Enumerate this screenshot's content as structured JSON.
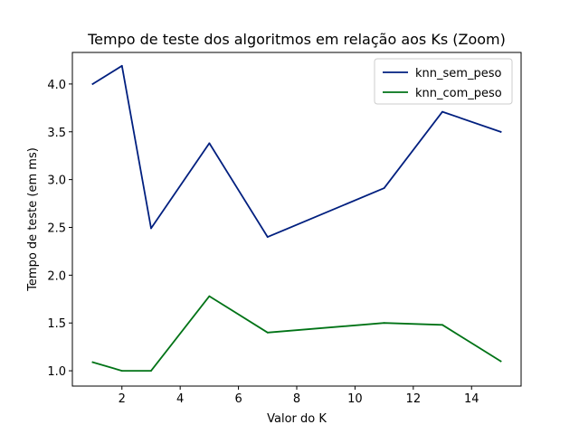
{
  "chart_data": {
    "type": "line",
    "title": "Tempo de teste dos algoritmos em relação aos Ks (Zoom)",
    "xlabel": "Valor do K",
    "ylabel": "Tempo de teste (em ms)",
    "x": [
      1,
      2,
      3,
      5,
      7,
      11,
      13,
      15
    ],
    "xlim": [
      0.3,
      15.7
    ],
    "ylim": [
      0.84,
      4.33
    ],
    "xticks": [
      2,
      4,
      6,
      8,
      10,
      12,
      14
    ],
    "yticks": [
      1.0,
      1.5,
      2.0,
      2.5,
      3.0,
      3.5,
      4.0
    ],
    "grid": false,
    "legend_position": "top-right",
    "series": [
      {
        "name": "knn_sem_peso",
        "color": "#001f7f",
        "values": [
          4.0,
          4.19,
          2.49,
          3.38,
          2.4,
          2.91,
          3.71,
          3.5
        ]
      },
      {
        "name": "knn_com_peso",
        "color": "#007316",
        "values": [
          1.09,
          1.0,
          1.0,
          1.78,
          1.4,
          1.5,
          1.48,
          1.1
        ]
      }
    ]
  }
}
